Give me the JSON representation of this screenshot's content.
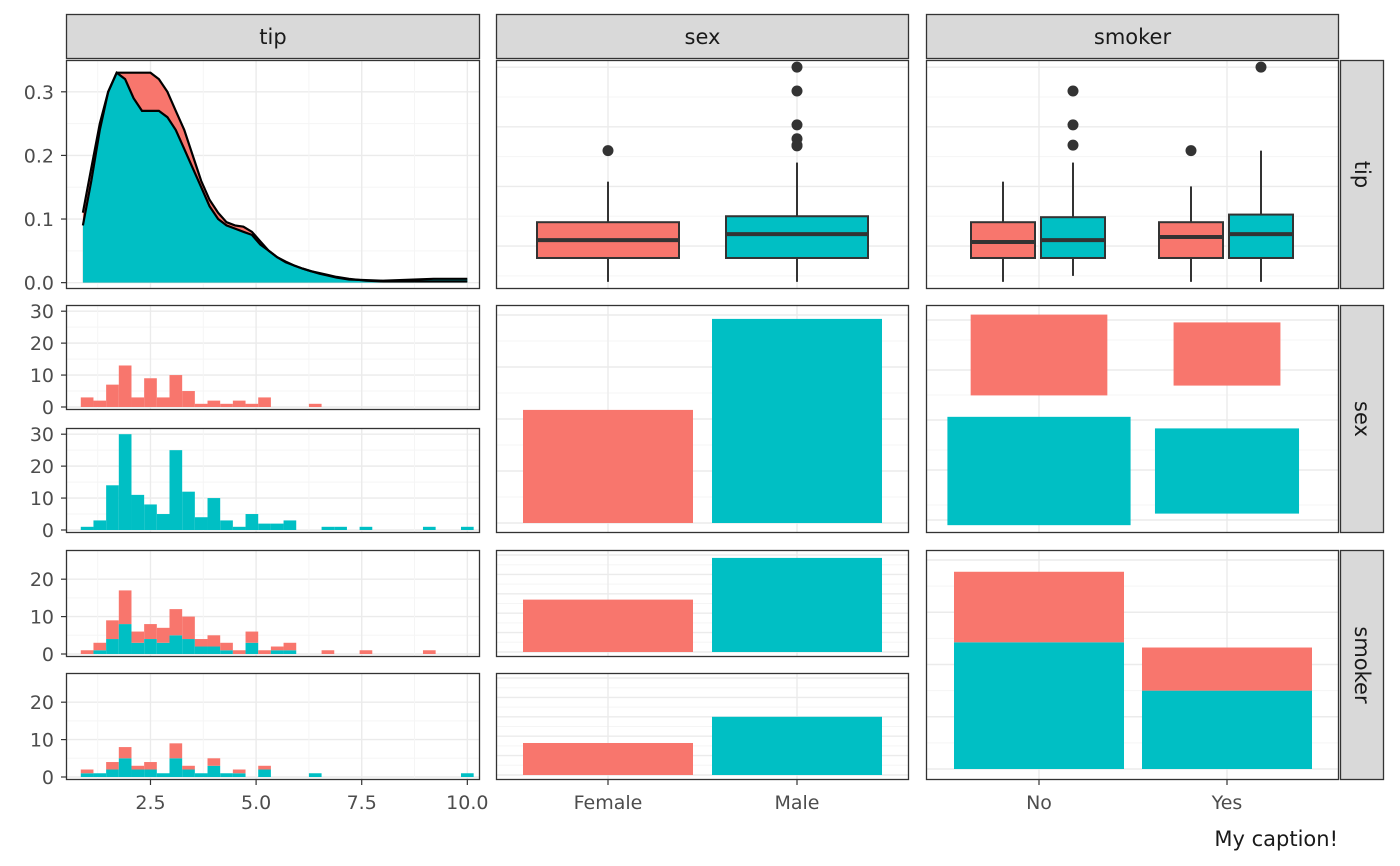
{
  "caption": "My caption!",
  "colors": {
    "female": "#F8766D",
    "male": "#00BFC4",
    "no": "#00BFC4",
    "yes": "#F8766D",
    "strip_bg": "#D9D9D9",
    "grid_major": "#EBEBEB",
    "grid_minor": "#F5F5F5",
    "border": "#333333"
  },
  "column_strips": [
    "tip",
    "sex",
    "smoker"
  ],
  "row_strips": [
    "tip",
    "sex",
    "smoker"
  ],
  "axis_ticks": {
    "tip_x": [
      "2.5",
      "5.0",
      "7.5",
      "10.0"
    ],
    "sex_x": [
      "Female",
      "Male"
    ],
    "smoker_x": [
      "No",
      "Yes"
    ],
    "density_y": [
      "0.0",
      "0.1",
      "0.2",
      "0.3"
    ],
    "hist_sex_female_y": [
      "0",
      "10",
      "20",
      "30"
    ],
    "hist_sex_male_y": [
      "0",
      "10",
      "20",
      "30"
    ],
    "hist_smoker_no_y": [
      "0",
      "10",
      "20"
    ],
    "hist_smoker_yes_y": [
      "0",
      "10",
      "20"
    ]
  },
  "chart_data": {
    "type": "scatterplot-matrix",
    "variables": [
      "tip",
      "sex",
      "smoker"
    ],
    "density": {
      "x": [
        0.9,
        1.1,
        1.3,
        1.5,
        1.7,
        1.9,
        2.1,
        2.3,
        2.5,
        2.7,
        2.9,
        3.1,
        3.3,
        3.5,
        3.7,
        3.9,
        4.1,
        4.3,
        4.5,
        4.7,
        4.9,
        5.1,
        5.3,
        5.5,
        5.7,
        5.9,
        6.1,
        6.3,
        6.5,
        6.7,
        6.9,
        7.2,
        7.6,
        8.0,
        8.4,
        8.8,
        9.2,
        9.6,
        10.0
      ],
      "series": [
        {
          "name": "Female",
          "values": [
            0.11,
            0.18,
            0.25,
            0.3,
            0.33,
            0.33,
            0.33,
            0.33,
            0.33,
            0.32,
            0.3,
            0.27,
            0.24,
            0.2,
            0.16,
            0.13,
            0.11,
            0.095,
            0.09,
            0.088,
            0.08,
            0.065,
            0.05,
            0.04,
            0.032,
            0.027,
            0.022,
            0.018,
            0.015,
            0.012,
            0.009,
            0.006,
            0.003,
            0.002,
            0.002,
            0.002,
            0.002,
            0.002,
            0.002
          ]
        },
        {
          "name": "Male",
          "values": [
            0.09,
            0.16,
            0.24,
            0.3,
            0.33,
            0.32,
            0.29,
            0.27,
            0.27,
            0.27,
            0.26,
            0.24,
            0.21,
            0.18,
            0.15,
            0.12,
            0.1,
            0.09,
            0.085,
            0.08,
            0.075,
            0.06,
            0.05,
            0.04,
            0.033,
            0.027,
            0.022,
            0.018,
            0.014,
            0.011,
            0.008,
            0.005,
            0.004,
            0.003,
            0.004,
            0.005,
            0.006,
            0.006,
            0.006
          ]
        }
      ],
      "xlim": [
        0.5,
        10.3
      ],
      "ylim": [
        -0.01,
        0.35
      ]
    },
    "boxplot_tip_by_sex": [
      {
        "group": "Female",
        "min": 1.0,
        "q1": 2.0,
        "median": 2.75,
        "q3": 3.5,
        "max": 5.2,
        "outliers": [
          6.5
        ]
      },
      {
        "group": "Male",
        "min": 1.0,
        "q1": 2.0,
        "median": 3.0,
        "q3": 3.75,
        "max": 6.0,
        "outliers": [
          6.7,
          6.73,
          7.0,
          7.58,
          9.0,
          10.0
        ]
      }
    ],
    "boxplot_tip_by_smoker": [
      {
        "group": "No / Female",
        "min": 1.0,
        "q1": 2.0,
        "median": 2.67,
        "q3": 3.5,
        "max": 5.2,
        "outliers": []
      },
      {
        "group": "No / Male",
        "min": 1.25,
        "q1": 2.0,
        "median": 2.75,
        "q3": 3.71,
        "max": 6.0,
        "outliers": [
          6.73,
          7.58,
          9.0
        ]
      },
      {
        "group": "Yes / Female",
        "min": 1.0,
        "q1": 2.0,
        "median": 2.88,
        "q3": 3.5,
        "max": 5.0,
        "outliers": [
          6.5
        ]
      },
      {
        "group": "Yes / Male",
        "min": 1.0,
        "q1": 2.0,
        "median": 3.0,
        "q3": 3.82,
        "max": 6.5,
        "outliers": [
          10.0
        ]
      }
    ],
    "box_ylim": [
      0.7,
      10.3
    ],
    "hist_bins_x": [
      1.0,
      1.3,
      1.6,
      1.9,
      2.2,
      2.5,
      2.8,
      3.1,
      3.4,
      3.7,
      4.0,
      4.3,
      4.6,
      4.9,
      5.2,
      5.5,
      5.8,
      6.1,
      6.4,
      6.7,
      7.0,
      7.3,
      7.6,
      7.9,
      8.2,
      8.5,
      8.8,
      9.1,
      9.4,
      9.7,
      10.0
    ],
    "hist_bin_width": 0.3,
    "hist_sex": {
      "Female": [
        3,
        2,
        7,
        13,
        3,
        9,
        3,
        10,
        5,
        1,
        2,
        1,
        2,
        1,
        3,
        0,
        0,
        0,
        1,
        0,
        0,
        0,
        0,
        0,
        0,
        0,
        0,
        0,
        0,
        0,
        0
      ],
      "Male": [
        1,
        3,
        14,
        30,
        11,
        8,
        5,
        25,
        12,
        4,
        10,
        3,
        1,
        5,
        2,
        2,
        3,
        0,
        0,
        1,
        1,
        0,
        1,
        0,
        0,
        0,
        0,
        1,
        0,
        0,
        1
      ]
    },
    "hist_smoker": {
      "No": [
        1,
        3,
        9,
        17,
        6,
        8,
        7,
        12,
        10,
        4,
        5,
        3,
        1,
        6,
        1,
        2,
        3,
        0,
        0,
        1,
        0,
        0,
        1,
        0,
        0,
        0,
        0,
        1,
        0,
        0,
        0
      ],
      "Yes": [
        2,
        1,
        4,
        8,
        3,
        4,
        1,
        9,
        3,
        1,
        5,
        1,
        2,
        0,
        3,
        0,
        0,
        0,
        1,
        0,
        0,
        0,
        0,
        0,
        0,
        0,
        0,
        0,
        0,
        0,
        1
      ]
    },
    "bar_sex": {
      "Female": 87,
      "Male": 157
    },
    "mosaic_sex_smoker": {
      "No": {
        "Female": 54,
        "Male": 97
      },
      "Yes": {
        "Female": 33,
        "Male": 60
      }
    },
    "bar_sex_by_smoker": {
      "No": {
        "Female": 54,
        "Male": 97
      },
      "Yes": {
        "Female": 33,
        "Male": 60
      }
    },
    "bar_smoker": {
      "No": {
        "Female": 54,
        "Male": 97
      },
      "Yes": {
        "Female": 33,
        "Male": 60
      }
    },
    "smoker_bar_ylim": [
      0,
      160
    ]
  }
}
